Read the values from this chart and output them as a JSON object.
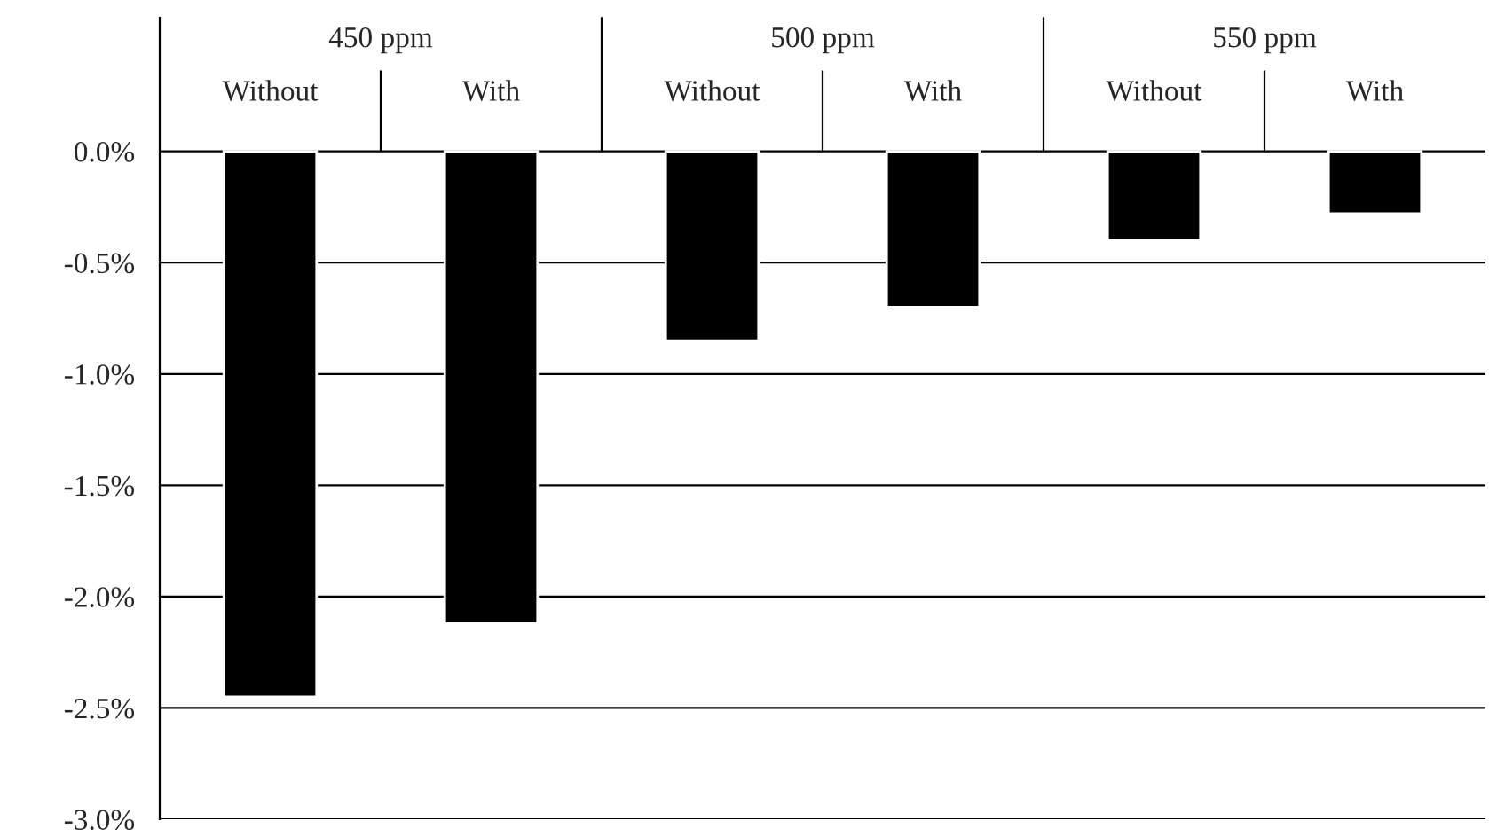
{
  "chart_data": {
    "type": "bar",
    "categories": [
      "Without",
      "With",
      "Without",
      "With",
      "Without",
      "With"
    ],
    "values": [
      -2.45,
      -2.12,
      -0.85,
      -0.7,
      -0.4,
      -0.28
    ],
    "color": "#000000",
    "ylim": [
      -3.0,
      0.6
    ],
    "yticks": [
      {
        "value": 0,
        "label": "0.0%"
      },
      {
        "value": -0.5,
        "label": "-0.5%"
      },
      {
        "value": -1.0,
        "label": "-1.0%"
      },
      {
        "value": -1.5,
        "label": "-1.5%"
      },
      {
        "value": -2.0,
        "label": "-2.0%"
      },
      {
        "value": -2.5,
        "label": "-2.5%"
      },
      {
        "value": -3.0,
        "label": "-3.0%"
      }
    ],
    "grid": "y",
    "annotations": [
      "450 ppm",
      "500 ppm",
      "550 ppm"
    ]
  }
}
